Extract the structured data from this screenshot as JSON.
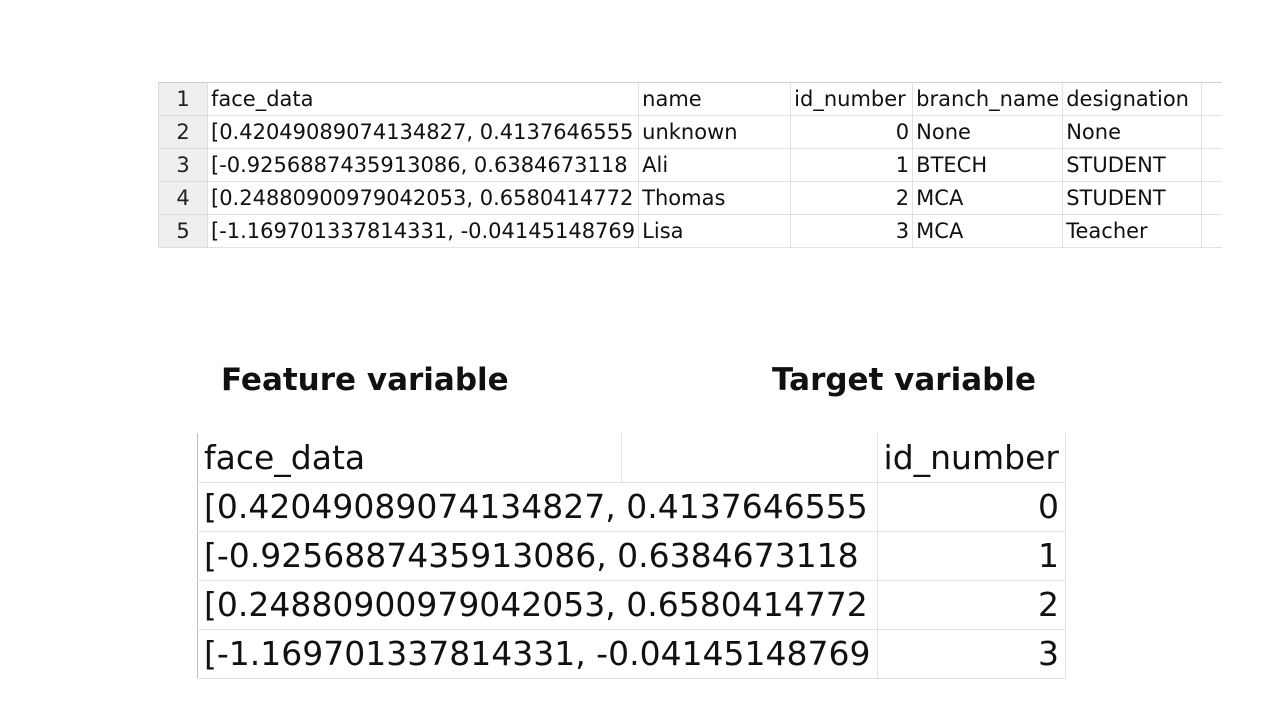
{
  "sheet": {
    "row_numbers": [
      "1",
      "2",
      "3",
      "4",
      "5"
    ],
    "header": {
      "face_data": "face_data",
      "name": "name",
      "id_number": "id_number",
      "branch_name": "branch_name",
      "designation": "designation"
    },
    "rows": [
      {
        "face_data": "[0.42049089074134827, 0.4137646555",
        "name": "unknown",
        "id_number": "0",
        "branch_name": "None",
        "designation": "None"
      },
      {
        "face_data": "[-0.9256887435913086, 0.6384673118",
        "name": "Ali",
        "id_number": "1",
        "branch_name": "BTECH",
        "designation": "STUDENT"
      },
      {
        "face_data": "[0.24880900979042053, 0.6580414772",
        "name": "Thomas",
        "id_number": "2",
        "branch_name": "MCA",
        "designation": "STUDENT"
      },
      {
        "face_data": "[-1.169701337814331, -0.04145148769",
        "name": "Lisa",
        "id_number": "3",
        "branch_name": "MCA",
        "designation": "Teacher"
      }
    ]
  },
  "headings": {
    "feature": "Feature variable",
    "target": "Target variable"
  },
  "zoom_table": {
    "header": {
      "face_data": "face_data",
      "id_number": "id_number"
    },
    "rows": [
      {
        "face_data": "[0.42049089074134827, 0.4137646555",
        "id_number": "0"
      },
      {
        "face_data": "[-0.9256887435913086, 0.6384673118",
        "id_number": "1"
      },
      {
        "face_data": "[0.24880900979042053, 0.6580414772",
        "id_number": "2"
      },
      {
        "face_data": "[-1.169701337814331, -0.04145148769",
        "id_number": "3"
      }
    ]
  }
}
